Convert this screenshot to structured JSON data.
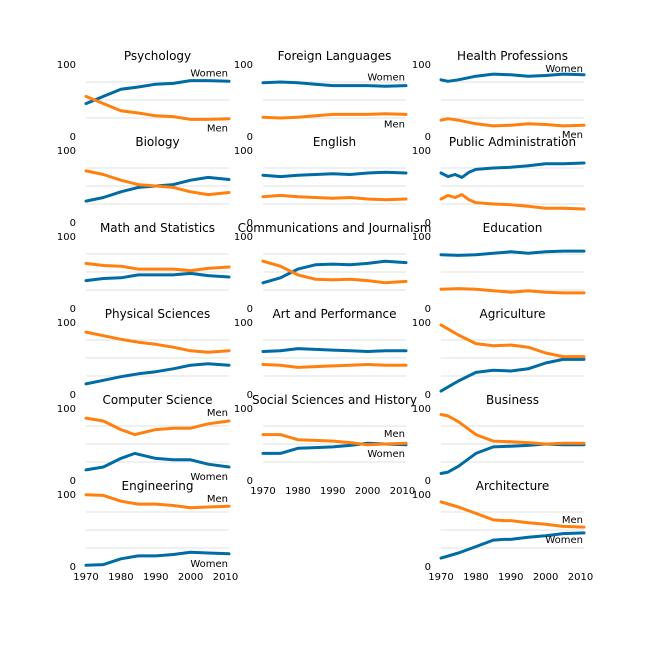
{
  "colors": {
    "women": "#006ba4",
    "men": "#ff800e",
    "grid": "#d8d8d8",
    "text": "#000000"
  },
  "chart_data": [
    {
      "type": "line",
      "title": "Psychology",
      "xlim": [
        1970,
        2011
      ],
      "ylim": [
        0,
        100
      ],
      "yticks": [
        0,
        100
      ],
      "xticks": [],
      "labels": {
        "women": "Women",
        "men": "Men"
      },
      "x": [
        1970,
        1975,
        1980,
        1985,
        1990,
        1995,
        2000,
        2005,
        2011
      ],
      "series": [
        {
          "name": "Women",
          "values": [
            45,
            55,
            65,
            68,
            72,
            73,
            77,
            77,
            76
          ]
        },
        {
          "name": "Men",
          "values": [
            55,
            45,
            35,
            32,
            28,
            27,
            23,
            23,
            24
          ]
        }
      ]
    },
    {
      "type": "line",
      "title": "Foreign Languages",
      "xlim": [
        1970,
        2011
      ],
      "ylim": [
        0,
        100
      ],
      "yticks": [
        0,
        100
      ],
      "xticks": [],
      "labels": {
        "women": "Women",
        "men": "Men"
      },
      "x": [
        1970,
        1975,
        1980,
        1985,
        1990,
        1995,
        2000,
        2005,
        2011
      ],
      "series": [
        {
          "name": "Women",
          "values": [
            74,
            75,
            74,
            72,
            70,
            70,
            70,
            69,
            70
          ]
        },
        {
          "name": "Men",
          "values": [
            26,
            25,
            26,
            28,
            30,
            30,
            30,
            31,
            30
          ]
        }
      ]
    },
    {
      "type": "line",
      "title": "Health Professions",
      "xlim": [
        1970,
        2011
      ],
      "ylim": [
        0,
        100
      ],
      "yticks": [
        0,
        100
      ],
      "xticks": [],
      "labels": {
        "women": "Women",
        "men": "Men"
      },
      "x": [
        1970,
        1972,
        1975,
        1980,
        1985,
        1990,
        1995,
        2000,
        2005,
        2011
      ],
      "series": [
        {
          "name": "Women",
          "values": [
            78,
            76,
            78,
            83,
            86,
            85,
            83,
            84,
            86,
            85
          ]
        },
        {
          "name": "Men",
          "values": [
            22,
            24,
            22,
            17,
            14,
            15,
            17,
            16,
            14,
            15
          ]
        }
      ]
    },
    {
      "type": "line",
      "title": "Biology",
      "xlim": [
        1970,
        2011
      ],
      "ylim": [
        0,
        100
      ],
      "yticks": [
        0,
        100
      ],
      "xticks": [],
      "labels": {
        "women": "",
        "men": ""
      },
      "x": [
        1970,
        1975,
        1980,
        1985,
        1990,
        1995,
        2000,
        2005,
        2011
      ],
      "series": [
        {
          "name": "Women",
          "values": [
            29,
            34,
            42,
            48,
            50,
            52,
            58,
            62,
            59
          ]
        },
        {
          "name": "Men",
          "values": [
            71,
            66,
            58,
            52,
            50,
            48,
            42,
            38,
            41
          ]
        }
      ]
    },
    {
      "type": "line",
      "title": "English",
      "xlim": [
        1970,
        2011
      ],
      "ylim": [
        0,
        100
      ],
      "yticks": [
        0,
        100
      ],
      "xticks": [],
      "labels": {
        "women": "",
        "men": ""
      },
      "x": [
        1970,
        1975,
        1980,
        1985,
        1990,
        1995,
        2000,
        2005,
        2011
      ],
      "series": [
        {
          "name": "Women",
          "values": [
            65,
            63,
            65,
            66,
            67,
            66,
            68,
            69,
            68
          ]
        },
        {
          "name": "Men",
          "values": [
            35,
            37,
            35,
            34,
            33,
            34,
            32,
            31,
            32
          ]
        }
      ]
    },
    {
      "type": "line",
      "title": "Public Administration",
      "xlim": [
        1970,
        2011
      ],
      "ylim": [
        0,
        100
      ],
      "yticks": [
        0,
        100
      ],
      "xticks": [],
      "labels": {
        "women": "",
        "men": ""
      },
      "x": [
        1970,
        1972,
        1974,
        1976,
        1978,
        1980,
        1985,
        1990,
        1995,
        2000,
        2005,
        2011
      ],
      "series": [
        {
          "name": "Women",
          "values": [
            68,
            63,
            66,
            62,
            69,
            73,
            75,
            76,
            78,
            81,
            81,
            82
          ]
        },
        {
          "name": "Men",
          "values": [
            32,
            37,
            34,
            38,
            31,
            27,
            25,
            24,
            22,
            19,
            19,
            18
          ]
        }
      ]
    },
    {
      "type": "line",
      "title": "Math and Statistics",
      "xlim": [
        1970,
        2011
      ],
      "ylim": [
        0,
        100
      ],
      "yticks": [
        0,
        100
      ],
      "xticks": [],
      "labels": {
        "women": "",
        "men": ""
      },
      "x": [
        1970,
        1975,
        1980,
        1985,
        1990,
        1995,
        2000,
        2005,
        2011
      ],
      "series": [
        {
          "name": "Women",
          "values": [
            38,
            41,
            42,
            46,
            46,
            46,
            48,
            45,
            43
          ]
        },
        {
          "name": "Men",
          "values": [
            62,
            59,
            58,
            54,
            54,
            54,
            52,
            55,
            57
          ]
        }
      ]
    },
    {
      "type": "line",
      "title": "Communications and Journalism",
      "xlim": [
        1970,
        2011
      ],
      "ylim": [
        0,
        100
      ],
      "yticks": [
        0,
        100
      ],
      "xticks": [],
      "labels": {
        "women": "",
        "men": ""
      },
      "x": [
        1970,
        1975,
        1980,
        1985,
        1990,
        1995,
        2000,
        2005,
        2011
      ],
      "series": [
        {
          "name": "Women",
          "values": [
            35,
            42,
            54,
            60,
            61,
            60,
            62,
            65,
            63
          ]
        },
        {
          "name": "Men",
          "values": [
            65,
            58,
            46,
            40,
            39,
            40,
            38,
            35,
            37
          ]
        }
      ]
    },
    {
      "type": "line",
      "title": "Education",
      "xlim": [
        1970,
        2011
      ],
      "ylim": [
        0,
        100
      ],
      "yticks": [
        0,
        100
      ],
      "xticks": [],
      "labels": {
        "women": "",
        "men": ""
      },
      "x": [
        1970,
        1975,
        1980,
        1985,
        1990,
        1995,
        2000,
        2005,
        2011
      ],
      "series": [
        {
          "name": "Women",
          "values": [
            74,
            73,
            74,
            76,
            78,
            76,
            78,
            79,
            79
          ]
        },
        {
          "name": "Men",
          "values": [
            26,
            27,
            26,
            24,
            22,
            24,
            22,
            21,
            21
          ]
        }
      ]
    },
    {
      "type": "line",
      "title": "Physical Sciences",
      "xlim": [
        1970,
        2011
      ],
      "ylim": [
        0,
        100
      ],
      "yticks": [
        0,
        100
      ],
      "xticks": [],
      "labels": {
        "women": "",
        "men": ""
      },
      "x": [
        1970,
        1975,
        1980,
        1985,
        1990,
        1995,
        2000,
        2005,
        2011
      ],
      "series": [
        {
          "name": "Women",
          "values": [
            14,
            19,
            24,
            28,
            31,
            35,
            40,
            42,
            40
          ]
        },
        {
          "name": "Men",
          "values": [
            86,
            81,
            76,
            72,
            69,
            65,
            60,
            58,
            60
          ]
        }
      ]
    },
    {
      "type": "line",
      "title": "Art and Performance",
      "xlim": [
        1970,
        2011
      ],
      "ylim": [
        0,
        100
      ],
      "yticks": [
        0,
        100
      ],
      "xticks": [],
      "labels": {
        "women": "",
        "men": ""
      },
      "x": [
        1970,
        1975,
        1980,
        1985,
        1990,
        1995,
        2000,
        2005,
        2011
      ],
      "series": [
        {
          "name": "Women",
          "values": [
            59,
            60,
            63,
            62,
            61,
            60,
            59,
            60,
            60
          ]
        },
        {
          "name": "Men",
          "values": [
            41,
            40,
            37,
            38,
            39,
            40,
            41,
            40,
            40
          ]
        }
      ]
    },
    {
      "type": "line",
      "title": "Agriculture",
      "xlim": [
        1970,
        2011
      ],
      "ylim": [
        0,
        100
      ],
      "yticks": [
        0,
        100
      ],
      "xticks": [],
      "labels": {
        "women": "",
        "men": ""
      },
      "x": [
        1970,
        1975,
        1980,
        1985,
        1990,
        1995,
        2000,
        2005,
        2011
      ],
      "series": [
        {
          "name": "Women",
          "values": [
            4,
            18,
            30,
            33,
            32,
            35,
            43,
            48,
            48
          ]
        },
        {
          "name": "Men",
          "values": [
            96,
            82,
            70,
            67,
            68,
            65,
            57,
            52,
            52
          ]
        }
      ]
    },
    {
      "type": "line",
      "title": "Computer Science",
      "xlim": [
        1970,
        2011
      ],
      "ylim": [
        0,
        100
      ],
      "yticks": [
        0,
        100
      ],
      "xticks": [],
      "labels": {
        "women": "Women",
        "men": "Men"
      },
      "x": [
        1970,
        1975,
        1980,
        1984,
        1990,
        1995,
        2000,
        2005,
        2011
      ],
      "series": [
        {
          "name": "Women",
          "values": [
            14,
            18,
            30,
            37,
            30,
            28,
            28,
            22,
            18
          ]
        },
        {
          "name": "Men",
          "values": [
            86,
            82,
            70,
            63,
            70,
            72,
            72,
            78,
            82
          ]
        }
      ]
    },
    {
      "type": "line",
      "title": "Social Sciences and History",
      "xlim": [
        1970,
        2011
      ],
      "ylim": [
        0,
        100
      ],
      "yticks": [
        0,
        100
      ],
      "xticks": [
        1970,
        1980,
        1990,
        2000,
        2010
      ],
      "labels": {
        "women": "Women",
        "men": "Men"
      },
      "x": [
        1970,
        1975,
        1980,
        1985,
        1990,
        1995,
        2000,
        2005,
        2011
      ],
      "series": [
        {
          "name": "Women",
          "values": [
            37,
            37,
            44,
            45,
            46,
            48,
            51,
            50,
            49
          ]
        },
        {
          "name": "Men",
          "values": [
            63,
            63,
            56,
            55,
            54,
            52,
            49,
            50,
            51
          ]
        }
      ]
    },
    {
      "type": "line",
      "title": "Business",
      "xlim": [
        1970,
        2011
      ],
      "ylim": [
        0,
        100
      ],
      "yticks": [
        0,
        100
      ],
      "xticks": [],
      "labels": {
        "women": "",
        "men": ""
      },
      "x": [
        1970,
        1972,
        1975,
        1980,
        1985,
        1990,
        1995,
        2000,
        2005,
        2011
      ],
      "series": [
        {
          "name": "Women",
          "values": [
            9,
            11,
            19,
            37,
            46,
            47,
            48,
            50,
            49,
            49
          ]
        },
        {
          "name": "Men",
          "values": [
            91,
            89,
            81,
            63,
            54,
            53,
            52,
            50,
            51,
            51
          ]
        }
      ]
    },
    {
      "type": "line",
      "title": "Engineering",
      "xlim": [
        1970,
        2011
      ],
      "ylim": [
        0,
        100
      ],
      "yticks": [
        0,
        100
      ],
      "xticks": [
        1970,
        1980,
        1990,
        2000,
        2010
      ],
      "labels": {
        "women": "Women",
        "men": "Men"
      },
      "x": [
        1970,
        1975,
        1980,
        1985,
        1990,
        1995,
        2000,
        2005,
        2011
      ],
      "series": [
        {
          "name": "Women",
          "values": [
            1,
            2,
            10,
            14,
            14,
            16,
            19,
            18,
            17
          ]
        },
        {
          "name": "Men",
          "values": [
            99,
            98,
            90,
            86,
            86,
            84,
            81,
            82,
            83
          ]
        }
      ]
    },
    {
      "type": "line",
      "title": "Architecture",
      "xlim": [
        1970,
        2011
      ],
      "ylim": [
        0,
        100
      ],
      "yticks": [
        0,
        100
      ],
      "xticks": [
        1970,
        1980,
        1990,
        2000,
        2010
      ],
      "labels": {
        "women": "Women",
        "men": "Men"
      },
      "x": [
        1970,
        1975,
        1980,
        1985,
        1988,
        1990,
        1995,
        2000,
        2005,
        2011
      ],
      "series": [
        {
          "name": "Women",
          "values": [
            11,
            18,
            27,
            36,
            37,
            37,
            40,
            42,
            45,
            46
          ]
        },
        {
          "name": "Men",
          "values": [
            89,
            82,
            73,
            64,
            63,
            63,
            60,
            58,
            55,
            54
          ]
        }
      ]
    }
  ]
}
